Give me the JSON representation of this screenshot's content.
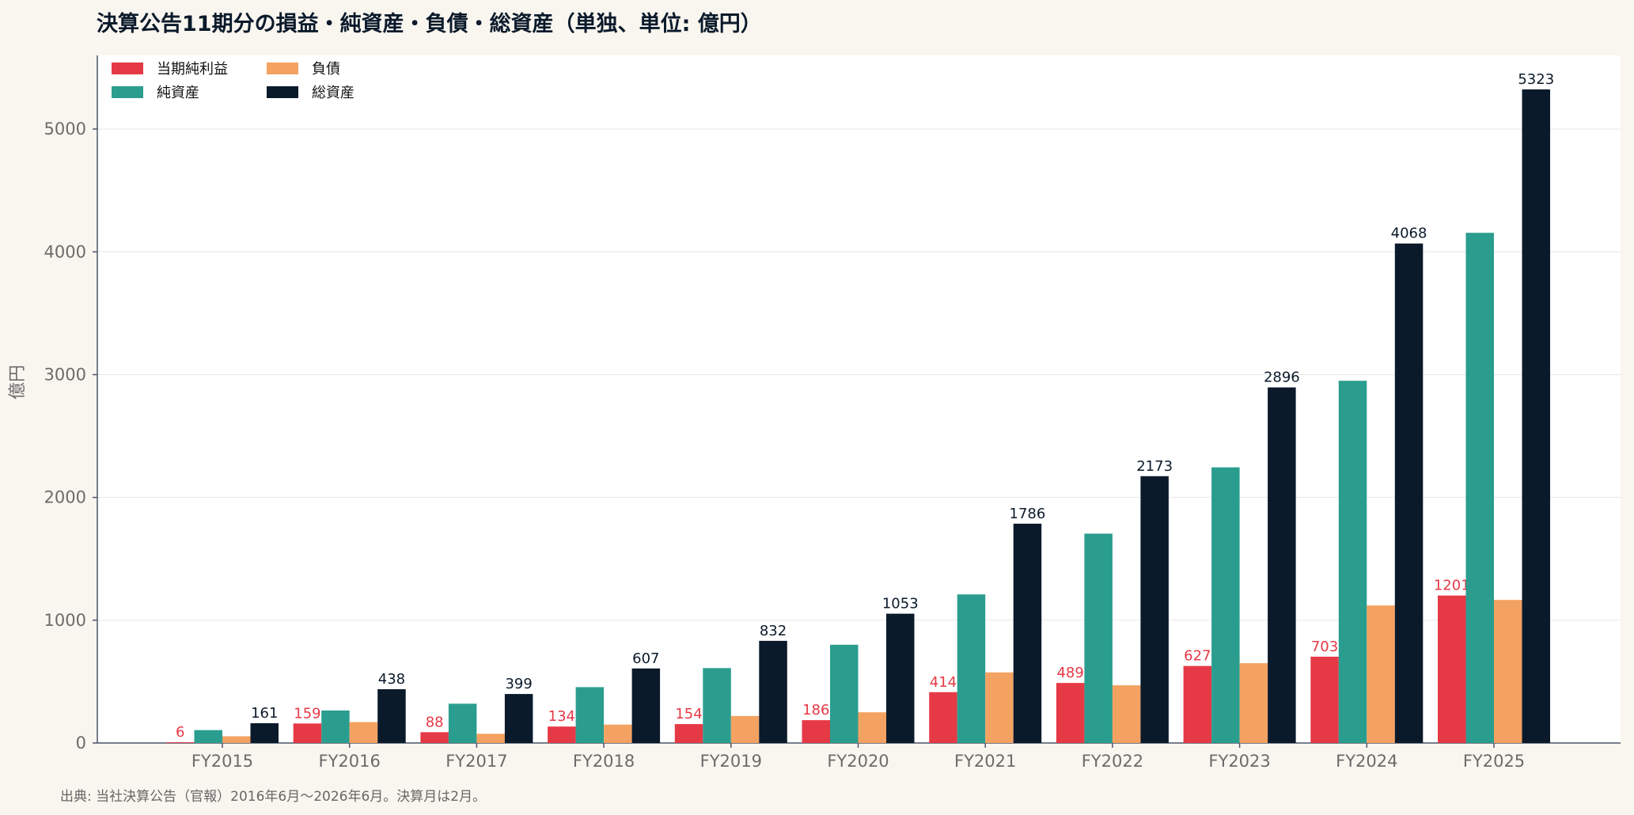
{
  "title": "決算公告11期分の損益・純資産・負債・総資産（単独、単位: 億円）",
  "source_note": "出典: 当社決算公告（官報）2016年6月〜2026年6月。決算月は2月。",
  "colors": {
    "background": "#f9f6ef",
    "plot_background": "#ffffff",
    "grid": "#e6e6e6",
    "axis": "#4a5568"
  },
  "chart_data": {
    "type": "bar",
    "title": "決算公告11期分の損益・純資産・負債・総資産（単独、単位: 億円）",
    "xlabel": "",
    "ylabel": "億円",
    "ylim": [
      0,
      5600
    ],
    "yticks": [
      0,
      1000,
      2000,
      3000,
      4000,
      5000
    ],
    "grid": true,
    "legend_position": "top-left",
    "categories": [
      "FY2015",
      "FY2016",
      "FY2017",
      "FY2018",
      "FY2019",
      "FY2020",
      "FY2021",
      "FY2022",
      "FY2023",
      "FY2024",
      "FY2025"
    ],
    "series": [
      {
        "name": "当期純利益",
        "color": "#e63946",
        "values": [
          6,
          159,
          88,
          134,
          154,
          186,
          414,
          489,
          627,
          703,
          1201
        ],
        "show_labels": true,
        "label_color": "#e63946"
      },
      {
        "name": "純資産",
        "color": "#2a9d8f",
        "values": [
          105,
          265,
          320,
          455,
          610,
          800,
          1210,
          1705,
          2245,
          2950,
          4155
        ],
        "show_labels": false
      },
      {
        "name": "負債",
        "color": "#f4a261",
        "values": [
          55,
          170,
          75,
          150,
          220,
          250,
          575,
          470,
          650,
          1120,
          1165
        ],
        "show_labels": false
      },
      {
        "name": "総資産",
        "color": "#0b1a2b",
        "values": [
          161,
          438,
          399,
          607,
          832,
          1053,
          1786,
          2173,
          2896,
          4068,
          5323
        ],
        "show_labels": true,
        "label_color": "#0b1a2b"
      }
    ]
  }
}
